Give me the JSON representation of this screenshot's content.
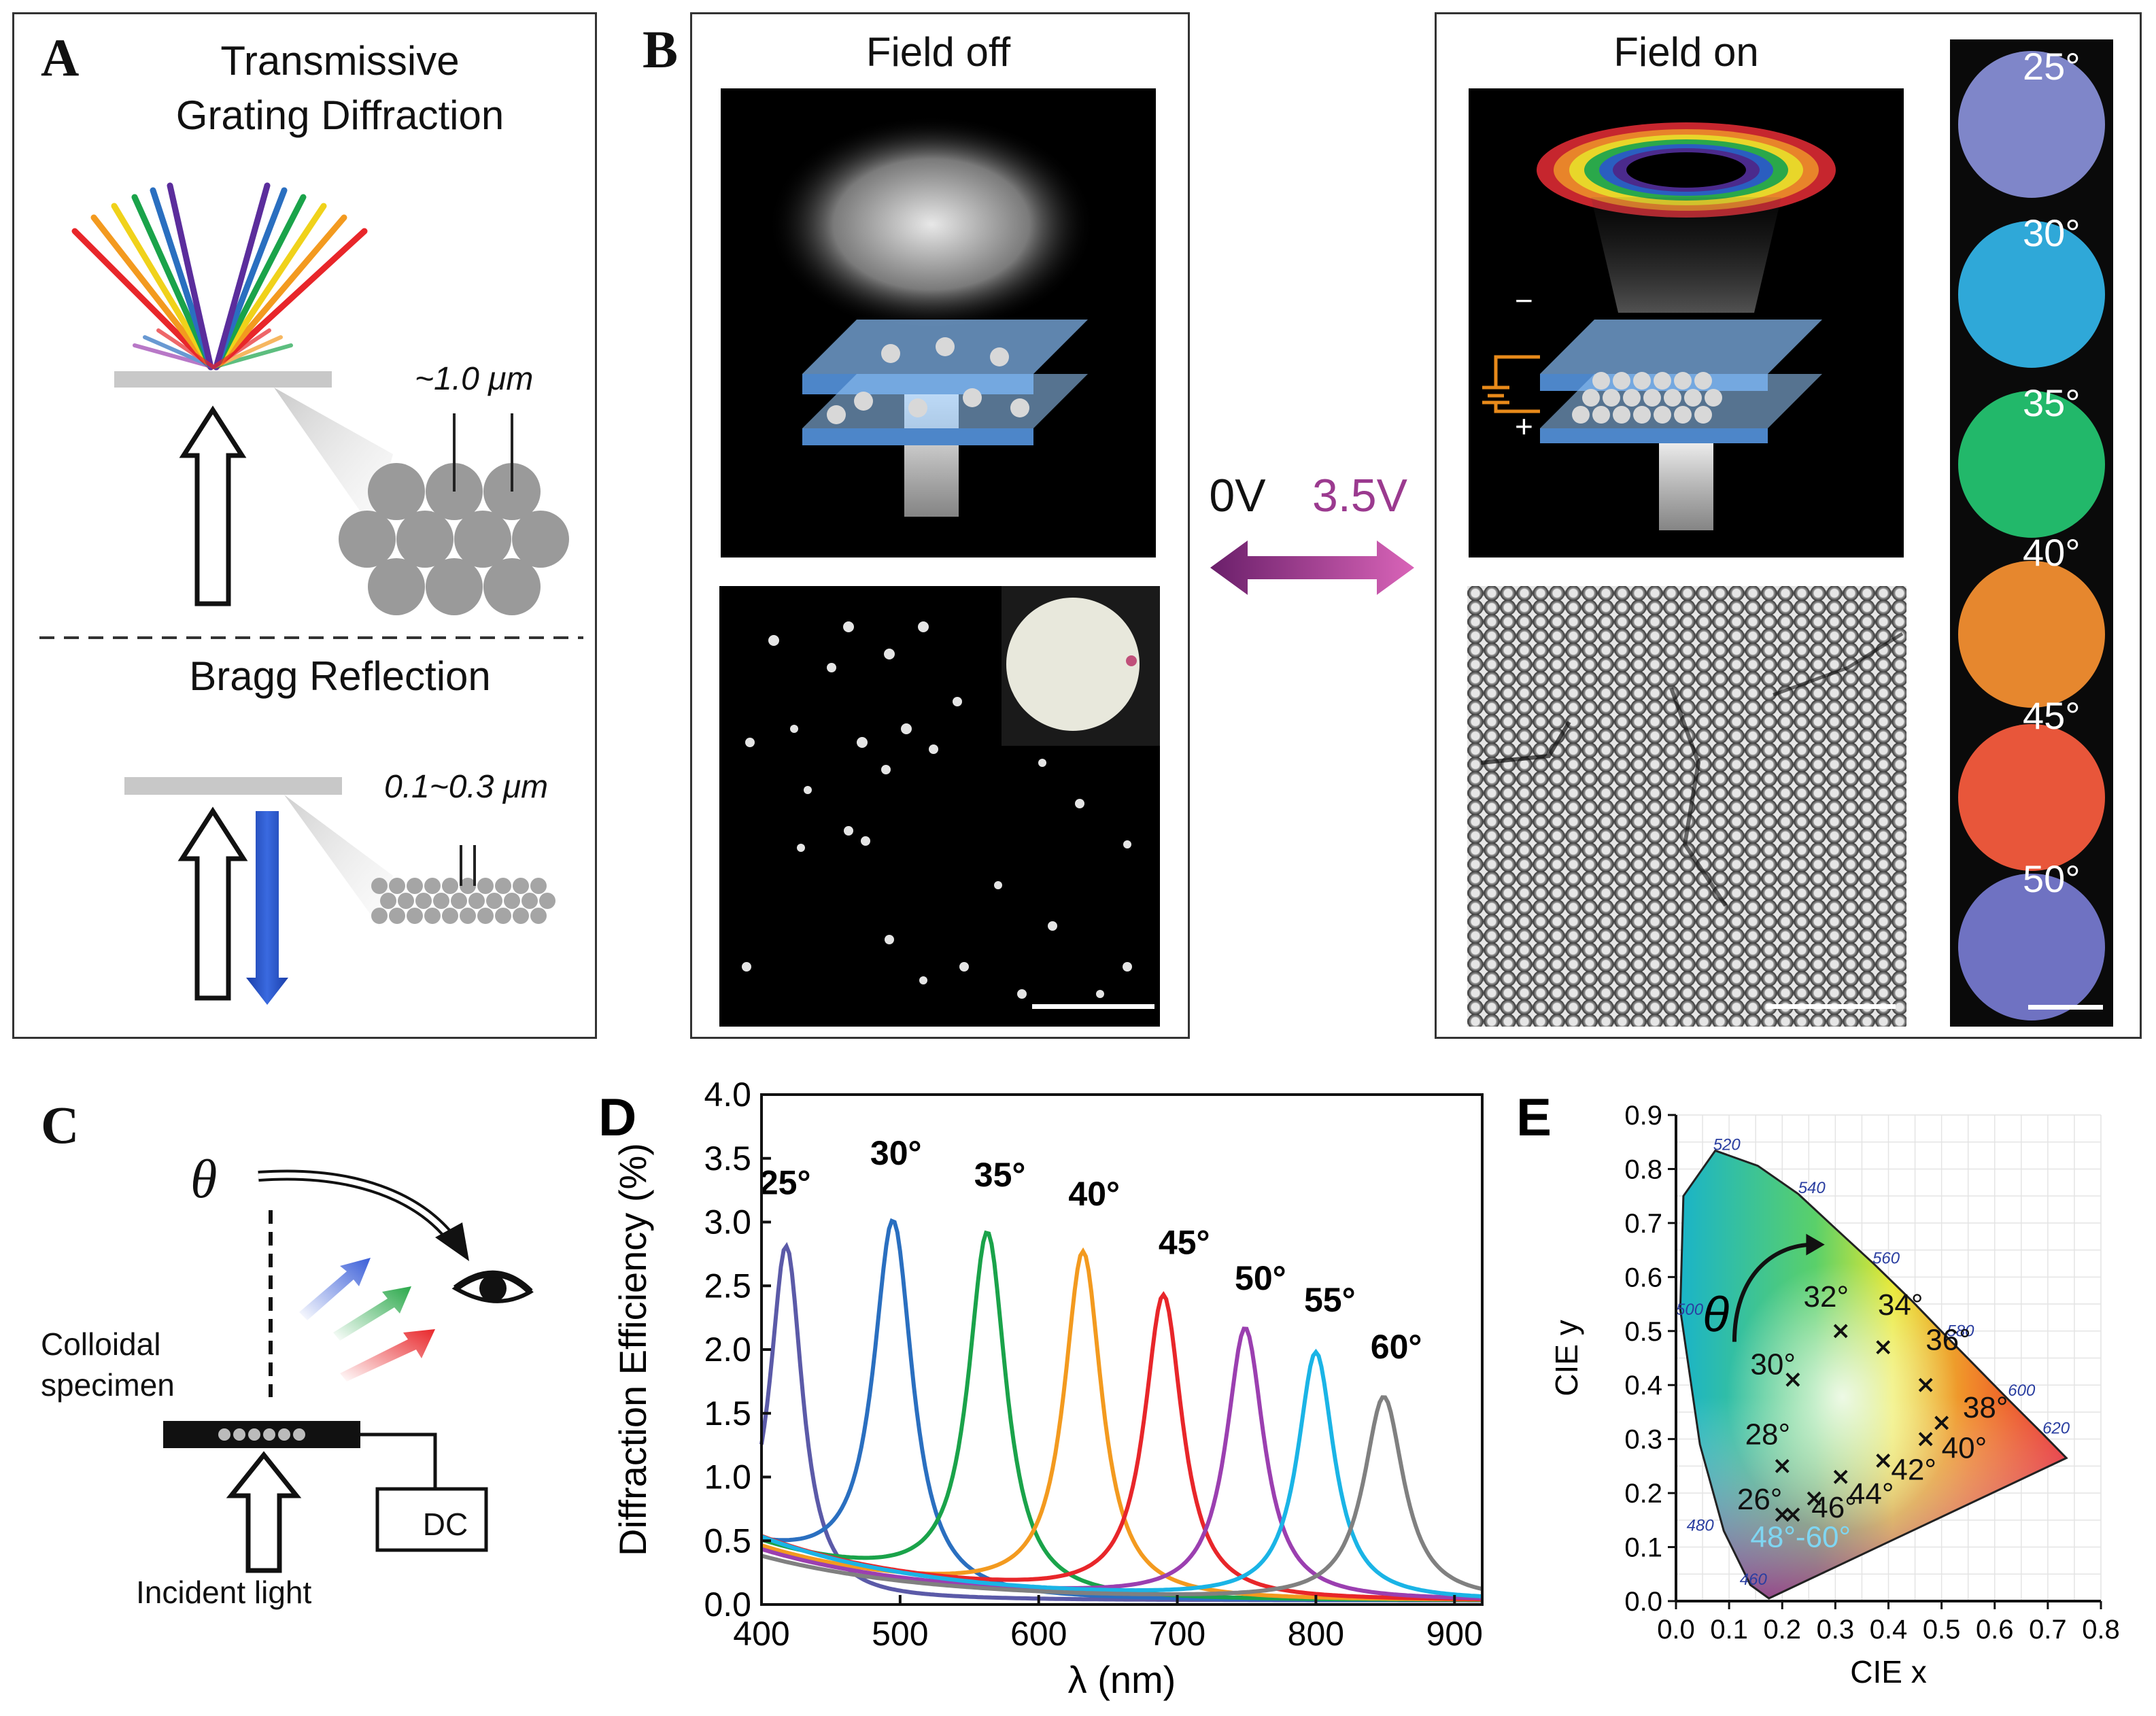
{
  "panelA": {
    "letter": "A",
    "title_line1": "Transmissive",
    "title_line2": "Grating Diffraction",
    "grating_spacing": "~1.0 μm",
    "bragg_title": "Bragg Reflection",
    "bragg_spacing": "0.1~0.3 μm"
  },
  "panelB": {
    "letter": "B",
    "field_off": "Field off",
    "field_on": "Field on",
    "voltage_low": "0V",
    "voltage_high": "3.5V",
    "minus": "−",
    "plus": "+",
    "angles": [
      "25°",
      "30°",
      "35°",
      "40°",
      "45°",
      "50°"
    ],
    "angle_colors": [
      "#7f86c9",
      "#2fa8d8",
      "#22b86a",
      "#e6872e",
      "#e8563a",
      "#6f72c2"
    ]
  },
  "panelC": {
    "letter": "C",
    "theta": "θ",
    "specimen_line1": "Colloidal",
    "specimen_line2": "specimen",
    "dc_label": "DC",
    "incident_label": "Incident light"
  },
  "panelE": {
    "letter": "E",
    "xlabel": "CIE x",
    "ylabel": "CIE y",
    "theta": "θ",
    "x_ticks": [
      "0.0",
      "0.1",
      "0.2",
      "0.3",
      "0.4",
      "0.5",
      "0.6",
      "0.7",
      "0.8"
    ],
    "y_ticks": [
      "0.0",
      "0.1",
      "0.2",
      "0.3",
      "0.4",
      "0.5",
      "0.6",
      "0.7",
      "0.8",
      "0.9"
    ],
    "wavelength_marks": [
      {
        "label": "520",
        "x": 0.07,
        "y": 0.835
      },
      {
        "label": "540",
        "x": 0.23,
        "y": 0.755
      },
      {
        "label": "560",
        "x": 0.37,
        "y": 0.625
      },
      {
        "label": "580",
        "x": 0.51,
        "y": 0.49
      },
      {
        "label": "600",
        "x": 0.625,
        "y": 0.38
      },
      {
        "label": "620",
        "x": 0.69,
        "y": 0.31
      },
      {
        "label": "500",
        "x": 0.0,
        "y": 0.53
      },
      {
        "label": "480",
        "x": 0.02,
        "y": 0.13
      },
      {
        "label": "460",
        "x": 0.12,
        "y": 0.03
      }
    ],
    "points": [
      {
        "label": "26°",
        "x": 0.2,
        "y": 0.16,
        "lx": 0.115,
        "ly": 0.17,
        "color": "#111"
      },
      {
        "label": "28°",
        "x": 0.2,
        "y": 0.25,
        "lx": 0.13,
        "ly": 0.29,
        "color": "#111"
      },
      {
        "label": "30°",
        "x": 0.22,
        "y": 0.41,
        "lx": 0.14,
        "ly": 0.42,
        "color": "#111"
      },
      {
        "label": "32°",
        "x": 0.31,
        "y": 0.5,
        "lx": 0.24,
        "ly": 0.545,
        "color": "#111"
      },
      {
        "label": "34°",
        "x": 0.39,
        "y": 0.47,
        "lx": 0.38,
        "ly": 0.53,
        "color": "#111"
      },
      {
        "label": "36°",
        "x": 0.47,
        "y": 0.4,
        "lx": 0.47,
        "ly": 0.465,
        "color": "#111"
      },
      {
        "label": "38°",
        "x": 0.5,
        "y": 0.33,
        "lx": 0.54,
        "ly": 0.34,
        "color": "#111"
      },
      {
        "label": "40°",
        "x": 0.47,
        "y": 0.3,
        "lx": 0.5,
        "ly": 0.265,
        "color": "#111"
      },
      {
        "label": "42°",
        "x": 0.39,
        "y": 0.26,
        "lx": 0.405,
        "ly": 0.225,
        "color": "#111"
      },
      {
        "label": "44°",
        "x": 0.31,
        "y": 0.23,
        "lx": 0.325,
        "ly": 0.18,
        "color": "#111"
      },
      {
        "label": "46°",
        "x": 0.26,
        "y": 0.19,
        "lx": 0.255,
        "ly": 0.155,
        "color": "#111"
      },
      {
        "label": "48°-60°",
        "x": 0.22,
        "y": 0.16,
        "lx": 0.14,
        "ly": 0.1,
        "color": "#7fd6f2"
      }
    ]
  },
  "chart_data": {
    "type": "line",
    "panel_letter": "D",
    "xlabel": "λ (nm)",
    "ylabel": "Diffraction Efficiency (%)",
    "xlim": [
      400,
      920
    ],
    "ylim": [
      0,
      4.0
    ],
    "x_ticks": [
      400,
      500,
      600,
      700,
      800,
      900
    ],
    "y_ticks": [
      "0.0",
      "0.5",
      "1.0",
      "1.5",
      "2.0",
      "2.5",
      "3.0",
      "3.5",
      "4.0"
    ],
    "series": [
      {
        "name": "25°",
        "color": "#5b5aa8",
        "peak_x": 418,
        "peak_y": 2.78,
        "width": 28,
        "base": 0.3,
        "label_x": 417,
        "label_y": 3.22
      },
      {
        "name": "30°",
        "color": "#2a6fc0",
        "peak_x": 495,
        "peak_y": 2.98,
        "width": 34,
        "base": 0.4,
        "label_x": 497,
        "label_y": 3.45
      },
      {
        "name": "35°",
        "color": "#1aa34a",
        "peak_x": 563,
        "peak_y": 2.89,
        "width": 33,
        "base": 0.45,
        "label_x": 572,
        "label_y": 3.28
      },
      {
        "name": "40°",
        "color": "#f39a1f",
        "peak_x": 632,
        "peak_y": 2.74,
        "width": 33,
        "base": 0.42,
        "label_x": 640,
        "label_y": 3.13
      },
      {
        "name": "45°",
        "color": "#e8262a",
        "peak_x": 690,
        "peak_y": 2.4,
        "width": 33,
        "base": 0.5,
        "label_x": 705,
        "label_y": 2.75
      },
      {
        "name": "50°",
        "color": "#9b3fb0",
        "peak_x": 749,
        "peak_y": 2.14,
        "width": 33,
        "base": 0.4,
        "label_x": 760,
        "label_y": 2.47
      },
      {
        "name": "55°",
        "color": "#1ab4e6",
        "peak_x": 800,
        "peak_y": 1.95,
        "width": 32,
        "base": 0.5,
        "label_x": 810,
        "label_y": 2.3
      },
      {
        "name": "60°",
        "color": "#808080",
        "peak_x": 849,
        "peak_y": 1.6,
        "width": 35,
        "base": 0.35,
        "label_x": 858,
        "label_y": 1.93
      }
    ]
  }
}
